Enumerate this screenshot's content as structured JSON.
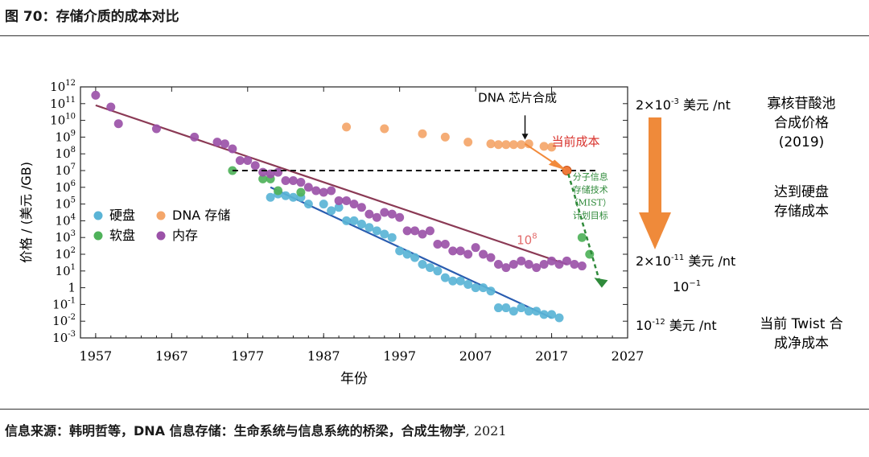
{
  "figure": {
    "title": "图 70：存储介质的成本对比",
    "source_label": "信息来源：韩明哲等，DNA 信息存储：生命系统与信息系统的桥梁，合成生物学",
    "source_year": ", 2021"
  },
  "chart_data": {
    "type": "scatter",
    "xlabel": "年份",
    "ylabel": "价格 / (美元 /GB)",
    "xlim": [
      1955,
      2027
    ],
    "ylim_log10": [
      -3,
      12
    ],
    "x_ticks": [
      "1957",
      "1967",
      "1977",
      "1987",
      "1997",
      "2007",
      "2017",
      "2027"
    ],
    "y_ticks": [
      {
        "base": "10",
        "exp": "12"
      },
      {
        "base": "10",
        "exp": "11"
      },
      {
        "base": "10",
        "exp": "10"
      },
      {
        "base": "10",
        "exp": "9"
      },
      {
        "base": "10",
        "exp": "8"
      },
      {
        "base": "10",
        "exp": "7"
      },
      {
        "base": "10",
        "exp": "6"
      },
      {
        "base": "10",
        "exp": "5"
      },
      {
        "base": "10",
        "exp": "4"
      },
      {
        "base": "10",
        "exp": "3"
      },
      {
        "base": "10",
        "exp": "2"
      },
      {
        "base": "10",
        "exp": "1"
      },
      {
        "base": "1",
        "exp": ""
      },
      {
        "base": "10",
        "exp": "-1"
      },
      {
        "base": "10",
        "exp": "-2"
      },
      {
        "base": "10",
        "exp": "-3"
      }
    ],
    "legend": [
      {
        "label": "硬盘",
        "color": "#5ab4d6"
      },
      {
        "label": "DNA 存储",
        "color": "#f4a66a"
      },
      {
        "label": "软盘",
        "color": "#4fb25a"
      },
      {
        "label": "内存",
        "color": "#9b52a8"
      }
    ],
    "series": [
      {
        "name": "硬盘",
        "color": "#5ab4d6",
        "points": [
          [
            1980,
            5.4
          ],
          [
            1981,
            5.6
          ],
          [
            1982,
            5.5
          ],
          [
            1983,
            5.4
          ],
          [
            1984,
            5.4
          ],
          [
            1985,
            5.0
          ],
          [
            1987,
            5.0
          ],
          [
            1988,
            4.6
          ],
          [
            1989,
            4.8
          ],
          [
            1990,
            4.0
          ],
          [
            1991,
            4.0
          ],
          [
            1992,
            3.8
          ],
          [
            1993,
            3.6
          ],
          [
            1994,
            3.4
          ],
          [
            1995,
            3.2
          ],
          [
            1996,
            3.0
          ],
          [
            1997,
            2.2
          ],
          [
            1998,
            2.0
          ],
          [
            1999,
            1.8
          ],
          [
            2000,
            1.4
          ],
          [
            2001,
            1.2
          ],
          [
            2002,
            1.0
          ],
          [
            2003,
            0.6
          ],
          [
            2004,
            0.4
          ],
          [
            2005,
            0.4
          ],
          [
            2006,
            0.2
          ],
          [
            2007,
            0.0
          ],
          [
            2008,
            0.0
          ],
          [
            2009,
            -0.2
          ],
          [
            2010,
            -1.2
          ],
          [
            2011,
            -1.2
          ],
          [
            2012,
            -1.4
          ],
          [
            2013,
            -1.2
          ],
          [
            2014,
            -1.4
          ],
          [
            2015,
            -1.4
          ],
          [
            2016,
            -1.6
          ],
          [
            2017,
            -1.6
          ],
          [
            2018,
            -1.8
          ]
        ]
      },
      {
        "name": "软盘",
        "color": "#4fb25a",
        "points": [
          [
            1975,
            7.0
          ],
          [
            1979,
            6.5
          ],
          [
            1980,
            6.5
          ],
          [
            1981,
            5.8
          ],
          [
            1984,
            5.7
          ],
          [
            2021,
            3.0
          ],
          [
            2022,
            2.0
          ]
        ]
      },
      {
        "name": "内存",
        "color": "#9b52a8",
        "points": [
          [
            1957,
            11.5
          ],
          [
            1959,
            10.8
          ],
          [
            1960,
            9.8
          ],
          [
            1965,
            9.5
          ],
          [
            1970,
            9.0
          ],
          [
            1973,
            8.7
          ],
          [
            1974,
            8.6
          ],
          [
            1975,
            8.3
          ],
          [
            1976,
            7.6
          ],
          [
            1977,
            7.6
          ],
          [
            1978,
            7.3
          ],
          [
            1979,
            6.9
          ],
          [
            1980,
            6.8
          ],
          [
            1981,
            6.9
          ],
          [
            1982,
            6.4
          ],
          [
            1983,
            6.4
          ],
          [
            1984,
            6.3
          ],
          [
            1985,
            6.0
          ],
          [
            1986,
            5.8
          ],
          [
            1987,
            5.7
          ],
          [
            1988,
            5.8
          ],
          [
            1989,
            5.2
          ],
          [
            1990,
            5.2
          ],
          [
            1991,
            5.0
          ],
          [
            1992,
            4.8
          ],
          [
            1993,
            4.4
          ],
          [
            1994,
            4.2
          ],
          [
            1995,
            4.5
          ],
          [
            1996,
            4.4
          ],
          [
            1997,
            4.2
          ],
          [
            1998,
            3.4
          ],
          [
            1999,
            3.4
          ],
          [
            2000,
            3.2
          ],
          [
            2001,
            3.4
          ],
          [
            2002,
            2.6
          ],
          [
            2003,
            2.6
          ],
          [
            2004,
            2.2
          ],
          [
            2005,
            2.2
          ],
          [
            2006,
            2.0
          ],
          [
            2007,
            2.4
          ],
          [
            2008,
            2.0
          ],
          [
            2009,
            1.8
          ],
          [
            2010,
            1.4
          ],
          [
            2011,
            1.2
          ],
          [
            2012,
            1.4
          ],
          [
            2013,
            1.6
          ],
          [
            2014,
            1.4
          ],
          [
            2015,
            1.2
          ],
          [
            2016,
            1.4
          ],
          [
            2017,
            1.6
          ],
          [
            2018,
            1.4
          ],
          [
            2019,
            1.6
          ],
          [
            2020,
            1.4
          ],
          [
            2021,
            1.3
          ]
        ]
      },
      {
        "name": "DNA 存储",
        "color": "#f4a66a",
        "points": [
          [
            1990,
            9.6
          ],
          [
            1995,
            9.5
          ],
          [
            2000,
            9.2
          ],
          [
            2003,
            9.0
          ],
          [
            2006,
            8.7
          ],
          [
            2009,
            8.6
          ],
          [
            2010,
            8.55
          ],
          [
            2011,
            8.55
          ],
          [
            2012,
            8.55
          ],
          [
            2013,
            8.55
          ],
          [
            2014,
            8.6
          ],
          [
            2016,
            8.45
          ],
          [
            2017,
            8.4
          ],
          [
            2019,
            7.0
          ]
        ]
      }
    ],
    "trend_lines": [
      {
        "name": "内存趋势",
        "color": "#8b3a55",
        "from": [
          1957,
          10.9
        ],
        "to": [
          2019,
          1.4
        ]
      },
      {
        "name": "硬盘趋势",
        "color": "#2a5db0",
        "from": [
          1980,
          6.0
        ],
        "to": [
          2017,
          -1.8
        ]
      }
    ],
    "annotations": {
      "chip_synthesis": "DNA 芯片合成",
      "current_cost": "当前成本",
      "reduction_factor": {
        "base": "10",
        "exp": "8"
      },
      "mist_lines": [
        "分子信息",
        "存储技术",
        "（MIST）",
        "计划目标"
      ],
      "cost_high_label": {
        "mant": "2×10",
        "exp": "-3",
        "unit": " 美元 /nt"
      },
      "cost_low_label": {
        "mant": "2×10",
        "exp": "-11",
        "unit": " 美元 /nt"
      },
      "ratio_label": {
        "base": "10",
        "exp": "−1"
      },
      "twist_cost_label": {
        "base": "10",
        "exp": "-12",
        "unit": " 美元 /nt"
      },
      "right_label_1": [
        "寡核苷酸池",
        "合成价格",
        "(2019)"
      ],
      "right_label_2": [
        "达到硬盘",
        "存储成本"
      ],
      "right_label_3": [
        "当前 Twist 合",
        "成净成本"
      ]
    }
  }
}
